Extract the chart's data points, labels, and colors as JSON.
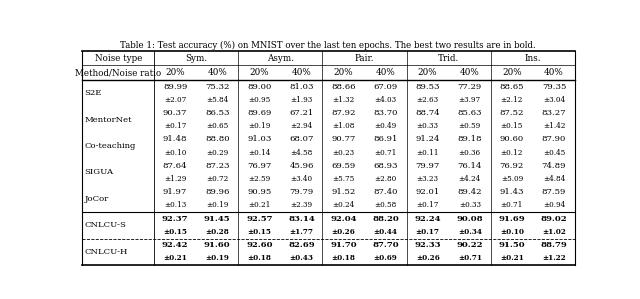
{
  "title": "Table 1: Test accuracy (%) on MNIST over the last ten epochs. The best two results are in bold.",
  "methods": [
    "S2E",
    "MentorNet",
    "Co-teaching",
    "SIGUA",
    "JoCor",
    "CNLCU-S",
    "CNLCU-H"
  ],
  "noise_types": [
    "Sym.",
    "Asym.",
    "Pair.",
    "Trid.",
    "Ins."
  ],
  "col_headers": [
    "Method/Noise ratio",
    "20%",
    "40%",
    "20%",
    "40%",
    "20%",
    "40%",
    "20%",
    "40%",
    "20%",
    "40%"
  ],
  "values": [
    [
      "89.99",
      "75.32",
      "89.00",
      "81.03",
      "88.66",
      "67.09",
      "89.53",
      "77.29",
      "88.65",
      "79.35"
    ],
    [
      "±2.07",
      "±5.84",
      "±0.95",
      "±1.93",
      "±1.32",
      "±4.03",
      "±2.63",
      "±3.97",
      "±2.12",
      "±3.04"
    ],
    [
      "90.37",
      "86.53",
      "89.69",
      "67.21",
      "87.92",
      "83.70",
      "88.74",
      "85.63",
      "87.52",
      "83.27"
    ],
    [
      "±0.17",
      "±0.65",
      "±0.19",
      "±2.94",
      "±1.08",
      "±0.49",
      "±0.33",
      "±0.59",
      "±0.15",
      "±1.42"
    ],
    [
      "91.48",
      "88.80",
      "91.03",
      "68.07",
      "90.77",
      "86.91",
      "91.24",
      "89.18",
      "90.60",
      "87.90"
    ],
    [
      "±0.10",
      "±0.29",
      "±0.14",
      "±4.58",
      "±0.23",
      "±0.71",
      "±0.11",
      "±0.36",
      "±0.12",
      "±0.45"
    ],
    [
      "87.64",
      "87.23",
      "76.97",
      "45.96",
      "69.59",
      "68.93",
      "79.97",
      "76.14",
      "76.92",
      "74.89"
    ],
    [
      "±1.29",
      "±0.72",
      "±2.59",
      "±3.40",
      "±5.75",
      "±2.80",
      "±3.23",
      "±4.24",
      "±5.09",
      "±4.84"
    ],
    [
      "91.97",
      "89.96",
      "90.95",
      "79.79",
      "91.52",
      "87.40",
      "92.01",
      "89.42",
      "91.43",
      "87.59"
    ],
    [
      "±0.13",
      "±0.19",
      "±0.21",
      "±2.39",
      "±0.24",
      "±0.58",
      "±0.17",
      "±0.33",
      "±0.71",
      "±0.94"
    ],
    [
      "92.37",
      "91.45",
      "92.57",
      "83.14",
      "92.04",
      "88.20",
      "92.24",
      "90.08",
      "91.69",
      "89.02"
    ],
    [
      "±0.15",
      "±0.28",
      "±0.15",
      "±1.77",
      "±0.26",
      "±0.44",
      "±0.17",
      "±0.34",
      "±0.10",
      "±1.02"
    ],
    [
      "92.42",
      "91.60",
      "92.60",
      "82.69",
      "91.70",
      "87.70",
      "92.33",
      "90.22",
      "91.50",
      "88.79"
    ],
    [
      "±0.21",
      "±0.19",
      "±0.18",
      "±0.43",
      "±0.18",
      "±0.69",
      "±0.26",
      "±0.71",
      "±0.21",
      "±1.22"
    ]
  ],
  "col_widths_rel": [
    1.7,
    1.0,
    1.0,
    1.0,
    1.0,
    1.0,
    1.0,
    1.0,
    1.0,
    1.0,
    1.0
  ],
  "fontsize_title": 6.2,
  "fontsize_header": 6.3,
  "fontsize_val": 6.1,
  "fontsize_pm": 5.2
}
